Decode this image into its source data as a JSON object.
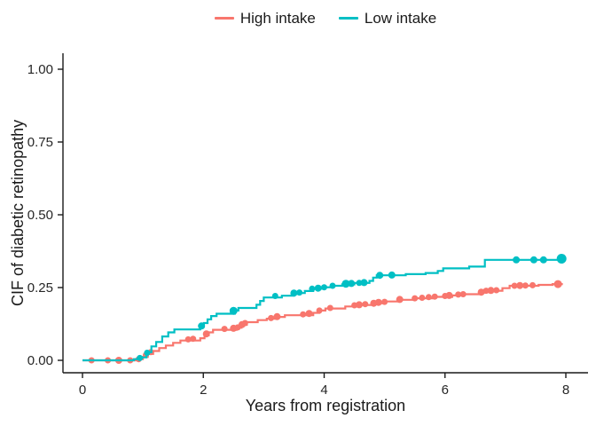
{
  "figure": {
    "xlabel": "Years from registration",
    "ylabel": "CIF of diabetic retinopathy"
  },
  "legend": {
    "items": [
      {
        "label": "High intake",
        "color": "#F8766D"
      },
      {
        "label": "Low intake",
        "color": "#00BFC4"
      }
    ]
  },
  "chart_data": {
    "type": "line",
    "subtype": "step-cumulative-incidence",
    "title": "",
    "xlabel": "Years from registration",
    "ylabel": "CIF of diabetic retinopathy",
    "xlim": [
      0,
      8.3
    ],
    "ylim": [
      0,
      1.04
    ],
    "grid": false,
    "legend_position": "top-center",
    "axis_color": "#1a1a1a",
    "xticks": {
      "values": [
        0,
        2,
        4,
        6,
        8
      ],
      "labels": [
        "0",
        "2",
        "4",
        "6",
        "8"
      ]
    },
    "yticks": {
      "values": [
        0,
        0.25,
        0.5,
        0.75,
        1
      ],
      "labels": [
        "0.00",
        "0.25",
        "0.50",
        "0.75",
        "1.00"
      ]
    },
    "series": [
      {
        "name": "High intake",
        "color": "#F8766D",
        "steps": [
          [
            0,
            0
          ],
          [
            0.88,
            0.004
          ],
          [
            1.0,
            0.012
          ],
          [
            1.08,
            0.022
          ],
          [
            1.17,
            0.032
          ],
          [
            1.27,
            0.042
          ],
          [
            1.38,
            0.051
          ],
          [
            1.5,
            0.06
          ],
          [
            1.62,
            0.068
          ],
          [
            1.95,
            0.076
          ],
          [
            2.02,
            0.086
          ],
          [
            2.09,
            0.096
          ],
          [
            2.16,
            0.105
          ],
          [
            2.55,
            0.112
          ],
          [
            2.63,
            0.122
          ],
          [
            2.72,
            0.131
          ],
          [
            2.9,
            0.138
          ],
          [
            3.05,
            0.143
          ],
          [
            3.18,
            0.149
          ],
          [
            3.35,
            0.155
          ],
          [
            3.82,
            0.163
          ],
          [
            3.92,
            0.171
          ],
          [
            4.02,
            0.178
          ],
          [
            4.35,
            0.185
          ],
          [
            4.55,
            0.19
          ],
          [
            4.82,
            0.196
          ],
          [
            5.02,
            0.202
          ],
          [
            5.22,
            0.208
          ],
          [
            5.5,
            0.213
          ],
          [
            5.8,
            0.218
          ],
          [
            6.12,
            0.223
          ],
          [
            6.32,
            0.227
          ],
          [
            6.57,
            0.233
          ],
          [
            6.68,
            0.239
          ],
          [
            6.95,
            0.248
          ],
          [
            7.07,
            0.256
          ],
          [
            7.55,
            0.259
          ],
          [
            7.78,
            0.262
          ],
          [
            7.95,
            0.262
          ]
        ],
        "markers": [
          [
            0.15,
            0,
            3.5
          ],
          [
            0.42,
            0,
            3.5
          ],
          [
            0.6,
            0,
            4
          ],
          [
            0.79,
            0,
            3.5
          ],
          [
            0.93,
            0.004,
            3.5
          ],
          [
            1.05,
            0.018,
            3.5
          ],
          [
            1.13,
            0.028,
            3.5
          ],
          [
            1.75,
            0.072,
            3.5
          ],
          [
            1.83,
            0.074,
            3.5
          ],
          [
            2.05,
            0.091,
            4
          ],
          [
            2.35,
            0.108,
            3.5
          ],
          [
            2.5,
            0.11,
            4
          ],
          [
            2.57,
            0.113,
            3.5
          ],
          [
            2.64,
            0.123,
            4
          ],
          [
            2.69,
            0.128,
            3.5
          ],
          [
            3.12,
            0.145,
            3.5
          ],
          [
            3.22,
            0.15,
            4
          ],
          [
            3.65,
            0.158,
            3.5
          ],
          [
            3.75,
            0.161,
            4
          ],
          [
            3.92,
            0.171,
            3.5
          ],
          [
            4.1,
            0.18,
            3.5
          ],
          [
            4.5,
            0.189,
            3.5
          ],
          [
            4.58,
            0.191,
            4
          ],
          [
            4.68,
            0.193,
            3.5
          ],
          [
            4.82,
            0.196,
            4
          ],
          [
            4.9,
            0.199,
            4
          ],
          [
            5.0,
            0.201,
            3.5
          ],
          [
            5.25,
            0.209,
            4
          ],
          [
            5.5,
            0.213,
            3.5
          ],
          [
            5.62,
            0.215,
            3.5
          ],
          [
            5.73,
            0.217,
            3.5
          ],
          [
            5.83,
            0.219,
            3.5
          ],
          [
            6.0,
            0.221,
            3.5
          ],
          [
            6.07,
            0.223,
            4
          ],
          [
            6.22,
            0.226,
            3.5
          ],
          [
            6.3,
            0.227,
            3.5
          ],
          [
            6.6,
            0.234,
            4
          ],
          [
            6.68,
            0.239,
            3.5
          ],
          [
            6.76,
            0.24,
            4
          ],
          [
            6.85,
            0.241,
            3.5
          ],
          [
            7.15,
            0.256,
            3.5
          ],
          [
            7.24,
            0.257,
            4
          ],
          [
            7.33,
            0.257,
            3.5
          ],
          [
            7.45,
            0.258,
            3.5
          ],
          [
            7.87,
            0.262,
            4.5
          ]
        ]
      },
      {
        "name": "Low intake",
        "color": "#00BFC4",
        "steps": [
          [
            0,
            0
          ],
          [
            0.85,
            0.004
          ],
          [
            0.97,
            0.01
          ],
          [
            1.06,
            0.028
          ],
          [
            1.14,
            0.048
          ],
          [
            1.22,
            0.063
          ],
          [
            1.32,
            0.082
          ],
          [
            1.42,
            0.096
          ],
          [
            1.52,
            0.106
          ],
          [
            1.95,
            0.116
          ],
          [
            2.01,
            0.128
          ],
          [
            2.07,
            0.141
          ],
          [
            2.13,
            0.152
          ],
          [
            2.22,
            0.16
          ],
          [
            2.52,
            0.171
          ],
          [
            2.58,
            0.18
          ],
          [
            2.88,
            0.191
          ],
          [
            2.94,
            0.204
          ],
          [
            3.0,
            0.216
          ],
          [
            3.3,
            0.222
          ],
          [
            3.5,
            0.231
          ],
          [
            3.68,
            0.238
          ],
          [
            3.82,
            0.246
          ],
          [
            4.0,
            0.251
          ],
          [
            4.12,
            0.256
          ],
          [
            4.3,
            0.261
          ],
          [
            4.5,
            0.266
          ],
          [
            4.75,
            0.273
          ],
          [
            4.81,
            0.284
          ],
          [
            4.87,
            0.292
          ],
          [
            5.35,
            0.296
          ],
          [
            5.68,
            0.3
          ],
          [
            5.88,
            0.307
          ],
          [
            5.97,
            0.316
          ],
          [
            6.4,
            0.322
          ],
          [
            6.66,
            0.345
          ],
          [
            7.9,
            0.349
          ],
          [
            8.0,
            0.349
          ]
        ],
        "markers": [
          [
            0.95,
            0.008,
            3.5
          ],
          [
            1.07,
            0.026,
            3.5
          ],
          [
            1.97,
            0.118,
            4
          ],
          [
            2.5,
            0.17,
            4.5
          ],
          [
            3.19,
            0.221,
            3.5
          ],
          [
            3.5,
            0.231,
            4
          ],
          [
            3.59,
            0.233,
            3.5
          ],
          [
            3.8,
            0.246,
            3.5
          ],
          [
            3.9,
            0.248,
            4
          ],
          [
            4.0,
            0.251,
            3.5
          ],
          [
            4.14,
            0.256,
            3.5
          ],
          [
            4.36,
            0.263,
            4.5
          ],
          [
            4.45,
            0.264,
            4
          ],
          [
            4.58,
            0.266,
            3.5
          ],
          [
            4.66,
            0.267,
            4
          ],
          [
            4.92,
            0.292,
            4
          ],
          [
            5.12,
            0.293,
            4
          ],
          [
            7.18,
            0.345,
            4
          ],
          [
            7.47,
            0.345,
            4
          ],
          [
            7.63,
            0.345,
            4
          ],
          [
            7.93,
            0.349,
            5.5
          ]
        ]
      }
    ]
  }
}
